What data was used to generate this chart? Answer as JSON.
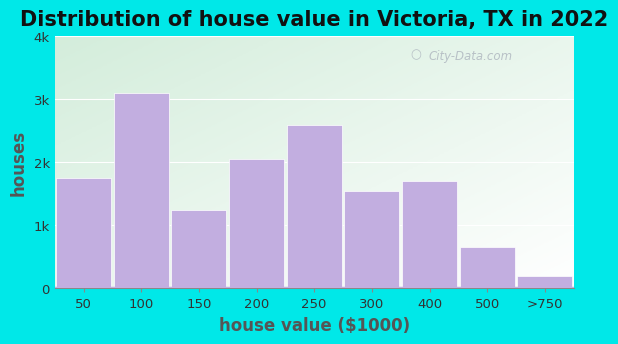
{
  "categories": [
    "50",
    "100",
    "150",
    "200",
    "250",
    "300",
    "400",
    "500",
    ">750"
  ],
  "values": [
    1750,
    3100,
    1250,
    2050,
    2600,
    1550,
    1700,
    650,
    200
  ],
  "bar_color": "#c2aee0",
  "bar_edge_color": "#c2aee0",
  "title": "Distribution of house value in Victoria, TX in 2022",
  "xlabel": "house value ($1000)",
  "ylabel": "houses",
  "ylim": [
    0,
    4000
  ],
  "yticks": [
    0,
    1000,
    2000,
    3000,
    4000
  ],
  "ytick_labels": [
    "0",
    "1k",
    "2k",
    "3k",
    "4k"
  ],
  "outer_bg_color": "#00e8e8",
  "plot_bg_top_left": "#d4eeda",
  "plot_bg_bottom_right": "#f0f8ff",
  "title_fontsize": 15,
  "axis_label_fontsize": 12,
  "watermark": "City-Data.com"
}
